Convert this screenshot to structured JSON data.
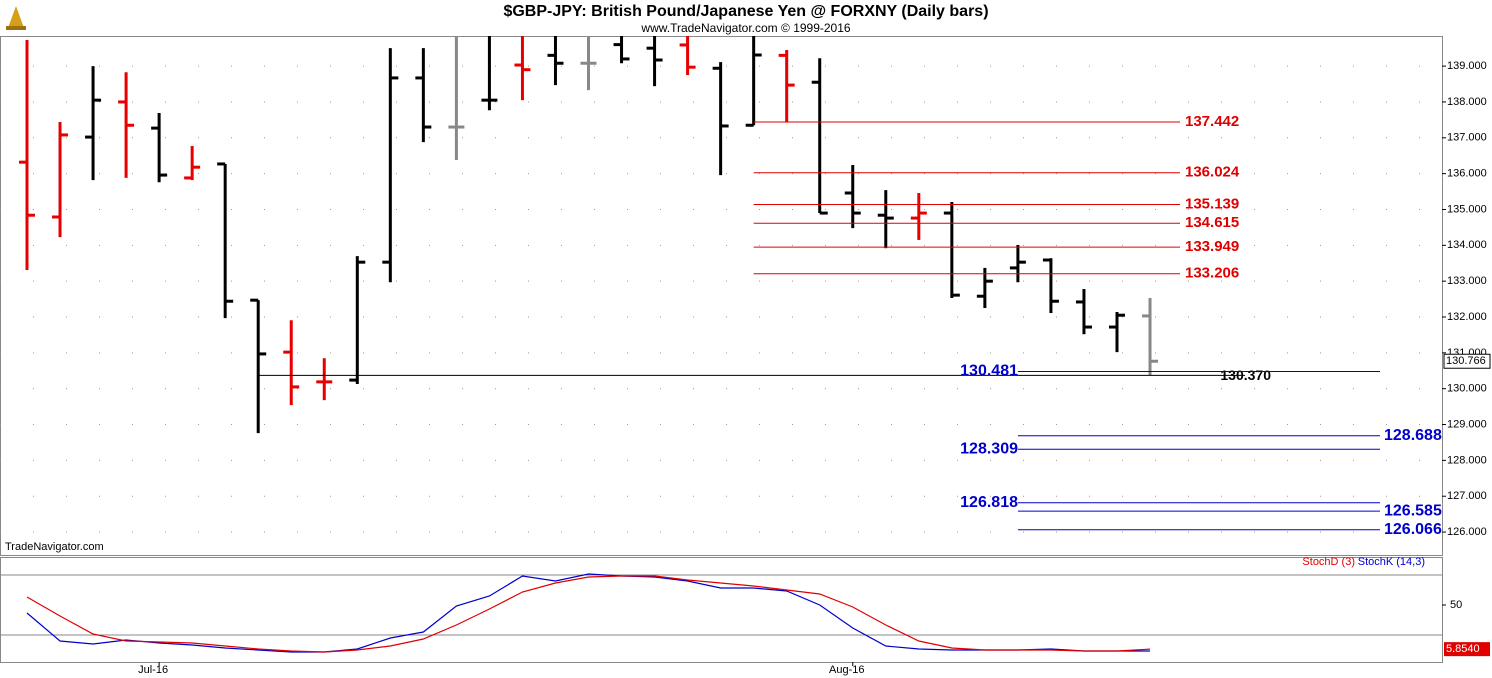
{
  "chart_data": [
    {
      "type": "ohlc",
      "title": "$GBP-JPY:  British Pound/Japanese Yen @ FORXNY  (Daily bars)",
      "subtitle": "www.TradeNavigator.com © 1999-2016",
      "watermark": "TradeNavigator.com",
      "open": [
        136.32,
        134.79,
        137.02,
        138.0,
        137.27,
        135.88,
        136.27,
        132.47,
        131.02,
        130.19,
        130.24,
        133.53,
        138.67,
        137.3,
        138.05,
        139.03,
        139.3,
        139.08,
        139.6,
        139.5,
        139.59,
        138.94,
        137.35,
        139.3,
        138.55,
        135.46,
        134.84,
        134.76,
        134.9,
        132.58,
        133.37,
        133.59,
        132.42,
        131.72,
        132.03
      ],
      "high": [
        139.73,
        137.44,
        139.0,
        138.83,
        137.69,
        136.77,
        136.27,
        132.47,
        131.91,
        130.85,
        133.7,
        139.5,
        139.5,
        139.84,
        139.84,
        139.84,
        139.84,
        139.84,
        139.84,
        139.84,
        139.84,
        139.11,
        139.84,
        139.45,
        139.22,
        136.24,
        135.54,
        135.46,
        135.21,
        133.37,
        134.01,
        133.64,
        132.78,
        132.14,
        132.53
      ],
      "low": [
        133.31,
        134.23,
        135.82,
        135.88,
        135.76,
        135.82,
        131.97,
        128.76,
        129.54,
        129.68,
        130.13,
        132.97,
        136.88,
        136.38,
        137.77,
        138.05,
        138.47,
        138.33,
        139.08,
        138.44,
        138.75,
        135.96,
        137.35,
        137.44,
        134.9,
        134.48,
        133.92,
        134.15,
        132.53,
        132.25,
        132.97,
        132.11,
        131.52,
        131.02,
        130.38
      ],
      "close": [
        134.84,
        137.08,
        138.05,
        137.35,
        135.96,
        136.18,
        132.44,
        130.97,
        130.05,
        130.19,
        133.53,
        138.67,
        137.3,
        137.3,
        138.05,
        138.9,
        139.08,
        139.08,
        139.2,
        139.17,
        138.97,
        137.33,
        139.31,
        138.47,
        134.9,
        134.9,
        134.76,
        134.9,
        132.61,
        133.0,
        133.53,
        132.44,
        131.72,
        132.05,
        130.766
      ],
      "colors": [
        "#e80000",
        "#e80000",
        "#000000",
        "#e80000",
        "#000000",
        "#e80000",
        "#000000",
        "#000000",
        "#e80000",
        "#e80000",
        "#000000",
        "#000000",
        "#000000",
        "#888888",
        "#000000",
        "#e80000",
        "#000000",
        "#888888",
        "#000000",
        "#000000",
        "#e80000",
        "#000000",
        "#000000",
        "#e80000",
        "#000000",
        "#000000",
        "#000000",
        "#e80000",
        "#000000",
        "#000000",
        "#000000",
        "#000000",
        "#000000",
        "#000000",
        "#888888"
      ],
      "last_label": "130.766",
      "ylim": [
        125.36,
        139.84
      ],
      "yticks": [
        {
          "value": 126,
          "label": "126.000"
        },
        {
          "value": 127,
          "label": "127.000"
        },
        {
          "value": 128,
          "label": "128.000"
        },
        {
          "value": 129,
          "label": "129.000"
        },
        {
          "value": 130,
          "label": "130.000"
        },
        {
          "value": 131,
          "label": "131.000"
        },
        {
          "value": 132,
          "label": "132.000"
        },
        {
          "value": 133,
          "label": "133.000"
        },
        {
          "value": 134,
          "label": "134.000"
        },
        {
          "value": 135,
          "label": "135.000"
        },
        {
          "value": 136,
          "label": "136.000"
        },
        {
          "value": 137,
          "label": "137.000"
        },
        {
          "value": 138,
          "label": "138.000"
        },
        {
          "value": 139,
          "label": "139.000"
        }
      ],
      "grid": true,
      "resistance_levels": {
        "color": "#e00000",
        "levels": [
          {
            "value": 137.442,
            "label": "137.442"
          },
          {
            "value": 136.024,
            "label": "136.024"
          },
          {
            "value": 135.139,
            "label": "135.139"
          },
          {
            "value": 134.615,
            "label": "134.615"
          },
          {
            "value": 133.949,
            "label": "133.949"
          },
          {
            "value": 133.206,
            "label": "133.206"
          }
        ]
      },
      "support_levels": {
        "color": "#0000cc",
        "levels": [
          {
            "value": 130.481,
            "label": "130.481"
          },
          {
            "value": 128.688,
            "label": "128.688"
          },
          {
            "value": 128.309,
            "label": "128.309"
          },
          {
            "value": 126.818,
            "label": "126.818"
          },
          {
            "value": 126.585,
            "label": "126.585"
          },
          {
            "value": 126.066,
            "label": "126.066"
          }
        ]
      },
      "reference_level": {
        "color": "#000000",
        "value": 130.37,
        "label": "130.370"
      }
    },
    {
      "type": "line",
      "categories": [
        null,
        null,
        null,
        null,
        "Jul-16",
        null,
        null,
        null,
        null,
        null,
        null,
        null,
        null,
        null,
        null,
        null,
        null,
        null,
        null,
        null,
        null,
        null,
        null,
        null,
        null,
        "Aug-16",
        null,
        null,
        null,
        null,
        null,
        null,
        null,
        null,
        null
      ],
      "series": [
        {
          "name": "StochD (3)",
          "color": "#e00000",
          "values": [
            58,
            39,
            21,
            14,
            13,
            12,
            9,
            6,
            4,
            3,
            5,
            9,
            16,
            30,
            46,
            63,
            72,
            78,
            79,
            79,
            75,
            72,
            69,
            65,
            61,
            48,
            30,
            14,
            7,
            5,
            5,
            5,
            4,
            4,
            5.854
          ],
          "last_label": "5.8540"
        },
        {
          "name": "StochK (14,3)",
          "color": "#0000cc",
          "values": [
            42,
            14,
            11,
            15,
            12,
            10,
            7,
            5,
            3,
            3,
            6,
            17,
            23,
            49,
            59,
            79,
            74,
            81,
            79,
            78,
            74,
            67,
            67,
            64,
            50,
            27,
            9,
            6,
            5,
            5,
            5,
            6,
            4,
            4,
            4
          ]
        }
      ],
      "ylim": [
        -7,
        98
      ],
      "yticks": [
        50
      ],
      "hlines": [
        20,
        80
      ]
    }
  ]
}
